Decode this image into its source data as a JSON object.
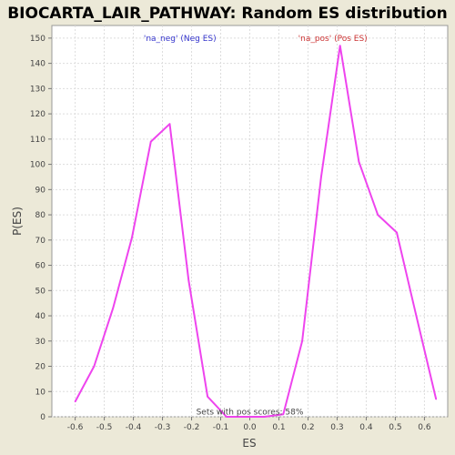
{
  "chart_data": {
    "type": "line",
    "title": "BIOCARTA_LAIR_PATHWAY: Random ES distribution",
    "xlabel": "ES",
    "ylabel": "P(ES)",
    "xlim": [
      -0.68,
      0.68
    ],
    "ylim": [
      0,
      155
    ],
    "xticks": [
      -0.6,
      -0.5,
      -0.4,
      -0.3,
      -0.2,
      -0.1,
      0.0,
      0.1,
      0.2,
      0.3,
      0.4,
      0.5,
      0.6
    ],
    "yticks": [
      0,
      10,
      20,
      30,
      40,
      50,
      60,
      70,
      80,
      90,
      100,
      110,
      120,
      130,
      140,
      150
    ],
    "grid": true,
    "series": [
      {
        "name": "",
        "color": "#ee44ee",
        "x": [
          -0.6,
          -0.535,
          -0.47,
          -0.405,
          -0.34,
          -0.275,
          -0.21,
          -0.145,
          -0.08,
          -0.015,
          0.05,
          0.115,
          0.18,
          0.245,
          0.31,
          0.375,
          0.44,
          0.505,
          0.57,
          0.64
        ],
        "y": [
          6,
          20,
          43,
          71,
          109,
          116,
          54,
          8,
          0,
          0,
          0,
          1,
          30,
          95,
          147,
          101,
          80,
          73,
          41,
          7
        ]
      }
    ],
    "annotations": [
      {
        "text": "'na_neg' (Neg ES)",
        "color": "#3333cc",
        "x": -0.24,
        "y": 150
      },
      {
        "text": "'na_pos' (Pos ES)",
        "color": "#cc3333",
        "x": 0.285,
        "y": 150
      },
      {
        "text": "Sets with pos scores: 58%",
        "color": "#444444",
        "x": 0.0,
        "y": 2
      }
    ]
  }
}
